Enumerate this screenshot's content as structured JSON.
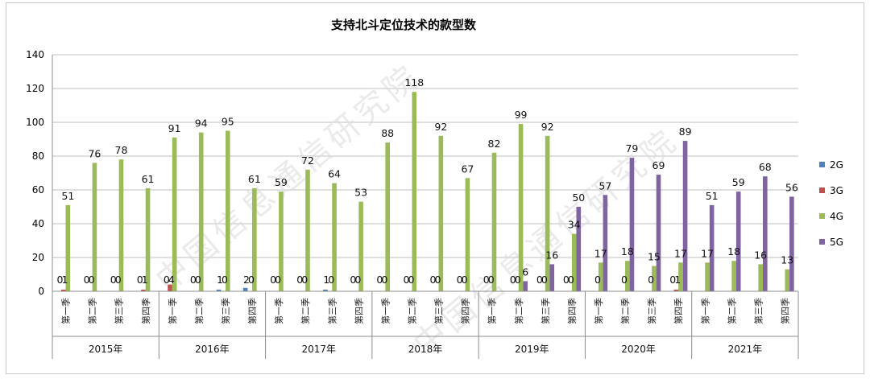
{
  "chart_data": {
    "type": "bar",
    "title": "支持北斗定位技术的款型数",
    "ylim": [
      0,
      140
    ],
    "yticks": [
      0,
      20,
      40,
      60,
      80,
      100,
      120,
      140
    ],
    "grid": true,
    "legend_position": "right",
    "years": [
      "2015年",
      "2016年",
      "2017年",
      "2018年",
      "2019年",
      "2020年",
      "2021年"
    ],
    "quarters": [
      "第一季",
      "第二季",
      "第三季",
      "第四季"
    ],
    "series": [
      {
        "name": "2G",
        "color": "#4f81bd",
        "values": [
          0,
          0,
          0,
          0,
          0,
          0,
          1,
          2,
          0,
          0,
          1,
          0,
          0,
          0,
          0,
          0,
          0,
          0,
          0,
          0,
          0,
          0,
          0,
          0,
          0,
          0,
          0,
          0
        ],
        "labels": [
          "0",
          "0",
          "0",
          "0",
          "0",
          "0",
          "1",
          "2",
          "0",
          "0",
          "1",
          "0",
          "0",
          "0",
          "0",
          "0",
          "0",
          "0",
          "0",
          "0",
          "",
          "",
          "",
          "0",
          "",
          "",
          "",
          ""
        ]
      },
      {
        "name": "3G",
        "color": "#c0504d",
        "values": [
          1,
          0,
          0,
          1,
          4,
          0,
          0,
          0,
          0,
          0,
          0,
          0,
          0,
          0,
          0,
          0,
          0,
          0,
          0,
          0,
          0,
          0,
          0,
          1,
          0,
          0,
          0,
          0
        ],
        "labels": [
          "1",
          "0",
          "0",
          "1",
          "4",
          "0",
          "0",
          "0",
          "0",
          "0",
          "0",
          "0",
          "0",
          "0",
          "0",
          "0",
          "0",
          "0",
          "0",
          "0",
          "0",
          "0",
          "0",
          "1",
          "",
          "",
          "",
          ""
        ]
      },
      {
        "name": "4G",
        "color": "#9bbb59",
        "values": [
          51,
          76,
          78,
          61,
          91,
          94,
          95,
          61,
          59,
          72,
          64,
          53,
          88,
          118,
          92,
          67,
          82,
          99,
          92,
          34,
          17,
          18,
          15,
          17,
          17,
          18,
          16,
          13
        ],
        "labels": [
          "51",
          "76",
          "78",
          "61",
          "91",
          "94",
          "95",
          "61",
          "59",
          "72",
          "64",
          "53",
          "88",
          "118",
          "92",
          "67",
          "82",
          "99",
          "92",
          "34",
          "17",
          "18",
          "15",
          "17",
          "17",
          "18",
          "16",
          "13"
        ]
      },
      {
        "name": "5G",
        "color": "#8064a2",
        "values": [
          0,
          0,
          0,
          0,
          0,
          0,
          0,
          0,
          0,
          0,
          0,
          0,
          0,
          0,
          0,
          0,
          0,
          6,
          16,
          50,
          57,
          79,
          69,
          89,
          51,
          59,
          68,
          56
        ],
        "labels": [
          "",
          "",
          "",
          "",
          "",
          "",
          "",
          "",
          "",
          "",
          "",
          "",
          "",
          "",
          "",
          "",
          "",
          "6",
          "16",
          "50",
          "57",
          "79",
          "69",
          "89",
          "51",
          "59",
          "68",
          "56"
        ]
      }
    ]
  },
  "watermark": "中国信息通信研究院"
}
